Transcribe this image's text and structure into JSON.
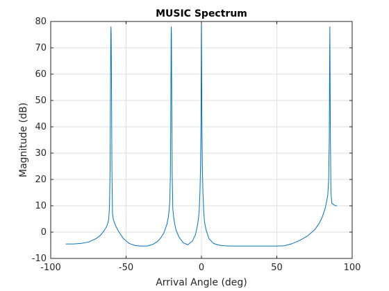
{
  "chart_data": {
    "type": "line",
    "title": "MUSIC Spectrum",
    "xlabel": "Arrival Angle (deg)",
    "ylabel": "Magnitude (dB)",
    "xlim": [
      -100,
      100
    ],
    "ylim": [
      -10,
      80
    ],
    "xticks": [
      -100,
      -50,
      0,
      50,
      100
    ],
    "yticks": [
      -10,
      0,
      10,
      20,
      30,
      40,
      50,
      60,
      70,
      80
    ],
    "grid": true,
    "line_color": "#0072BD",
    "series": [
      {
        "x": [
          -90,
          -85,
          -80,
          -75,
          -70,
          -67,
          -65,
          -63,
          -62,
          -61.5,
          -61,
          -60.6,
          -60.3,
          -60.1,
          -60,
          -59.9,
          -59.7,
          -59.4,
          -59,
          -58.5,
          -58,
          -57,
          -55,
          -52,
          -48,
          -44,
          -40,
          -36,
          -32,
          -29,
          -27,
          -25,
          -23,
          -22,
          -21.5,
          -21,
          -20.6,
          -20.3,
          -20.1,
          -20,
          -19.9,
          -19.7,
          -19.4,
          -19,
          -18.5,
          -18,
          -17,
          -15,
          -12,
          -9,
          -6,
          -4,
          -3,
          -2,
          -1.5,
          -1,
          -0.6,
          -0.3,
          -0.15,
          -0.05,
          0,
          0.05,
          0.15,
          0.3,
          0.6,
          1,
          1.5,
          2,
          3,
          5,
          8,
          12,
          15,
          20,
          30,
          40,
          50,
          55,
          60,
          65,
          70,
          75,
          78,
          80,
          82,
          83,
          83.8,
          84.4,
          84.8,
          85,
          85.2,
          85.5,
          85.9,
          86.5,
          87.5,
          89,
          90
        ],
        "y": [
          -4.5,
          -4.5,
          -4.3,
          -3.8,
          -2.5,
          -1.2,
          0.2,
          2,
          3.5,
          5,
          10,
          24,
          60,
          75,
          78,
          75,
          60,
          24,
          7,
          5,
          4,
          2.5,
          0.3,
          -2.3,
          -4.3,
          -5.1,
          -5.3,
          -5.3,
          -4.6,
          -3.5,
          -2.2,
          -0.4,
          2.8,
          5.5,
          8,
          12,
          22,
          50,
          75,
          78,
          75,
          50,
          22,
          9,
          6,
          4,
          1,
          -1.8,
          -4.1,
          -4.8,
          -3.4,
          -1,
          1.5,
          5,
          8,
          15,
          25,
          41,
          62,
          78,
          79,
          78,
          65,
          42,
          25,
          15,
          8,
          4,
          1,
          -2.5,
          -4.3,
          -5,
          -5.2,
          -5.3,
          -5.3,
          -5.3,
          -5.3,
          -5.2,
          -4.4,
          -3.2,
          -1.6,
          0.8,
          3.2,
          5.5,
          8.8,
          11.5,
          14,
          20,
          35,
          62,
          78,
          40,
          15,
          11,
          10.5,
          10,
          10
        ]
      }
    ]
  }
}
